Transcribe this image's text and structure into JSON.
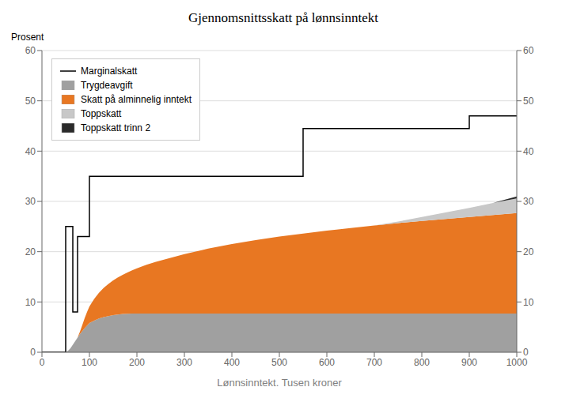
{
  "chart_data": {
    "type": "area",
    "title": "Gjennomsnittsskatt på lønnsinntekt",
    "x_label": "Lønnsinntekt. Tusen kroner",
    "y_label": "Prosent",
    "stacked": true,
    "grid": true,
    "legend": "upper left",
    "xlim": [
      0,
      1000
    ],
    "xticks": [
      0,
      100,
      200,
      300,
      400,
      500,
      600,
      700,
      800,
      900,
      1000
    ],
    "ylim": [
      0,
      60
    ],
    "yticks": [
      0,
      10,
      20,
      30,
      40,
      50,
      60
    ],
    "y2lim": [
      0,
      60
    ],
    "y2ticks": [
      0,
      10,
      20,
      30,
      40,
      50,
      60
    ],
    "x": [
      0,
      50,
      55,
      60,
      65,
      70,
      75,
      80,
      85,
      90,
      95,
      100,
      110,
      120,
      130,
      140,
      150,
      160,
      170,
      180,
      190,
      200,
      220,
      240,
      260,
      280,
      300,
      350,
      400,
      450,
      500,
      550,
      600,
      620,
      650,
      700,
      750,
      800,
      850,
      900,
      950,
      1000
    ],
    "series": [
      {
        "name": "Marginalskatt",
        "type": "line",
        "color": "#000000",
        "x": [
          0,
          50,
          50,
          65,
          65,
          75,
          75,
          100,
          100,
          550,
          550,
          900,
          900,
          1000
        ],
        "values": [
          0,
          0,
          25,
          25,
          8,
          8,
          23,
          23,
          35,
          35,
          44.5,
          44.5,
          47,
          47
        ]
      },
      {
        "name": "Trygdeavgift",
        "type": "area",
        "color": "#a0a0a0",
        "values": [
          0,
          0,
          0.3,
          0.8,
          1.5,
          2.2,
          2.9,
          3.6,
          4.2,
          4.8,
          5.3,
          5.8,
          6.3,
          6.7,
          7.0,
          7.2,
          7.4,
          7.5,
          7.6,
          7.65,
          7.68,
          7.7,
          7.7,
          7.7,
          7.7,
          7.7,
          7.7,
          7.7,
          7.7,
          7.7,
          7.7,
          7.7,
          7.7,
          7.7,
          7.7,
          7.7,
          7.7,
          7.7,
          7.7,
          7.7,
          7.7,
          7.7
        ]
      },
      {
        "name": "Skatt på alminnelig inntekt",
        "type": "area",
        "color": "#e87722",
        "values": [
          0,
          0,
          0,
          0,
          0,
          0,
          0,
          0.5,
          1.2,
          2.0,
          2.7,
          3.3,
          4.3,
          5.1,
          5.8,
          6.4,
          6.9,
          7.4,
          7.8,
          8.2,
          8.6,
          9.0,
          9.7,
          10.3,
          10.8,
          11.3,
          11.8,
          12.9,
          13.8,
          14.6,
          15.3,
          15.9,
          16.5,
          16.7,
          17.0,
          17.5,
          18.0,
          18.4,
          18.8,
          19.2,
          19.6,
          20.0
        ]
      },
      {
        "name": "Toppskatt",
        "type": "area",
        "color": "#c8c8c8",
        "values": [
          0,
          0,
          0,
          0,
          0,
          0,
          0,
          0,
          0,
          0,
          0,
          0,
          0,
          0,
          0,
          0,
          0,
          0,
          0,
          0,
          0,
          0,
          0,
          0,
          0,
          0,
          0,
          0,
          0,
          0,
          0,
          0,
          0,
          0,
          0,
          0,
          0.3,
          0.8,
          1.3,
          1.8,
          2.4,
          2.9
        ]
      },
      {
        "name": "Toppskatt trinn 2",
        "type": "area",
        "color": "#2a2a2a",
        "values": [
          0,
          0,
          0,
          0,
          0,
          0,
          0,
          0,
          0,
          0,
          0,
          0,
          0,
          0,
          0,
          0,
          0,
          0,
          0,
          0,
          0,
          0,
          0,
          0,
          0,
          0,
          0,
          0,
          0,
          0,
          0,
          0,
          0,
          0,
          0,
          0,
          0,
          0,
          0,
          0,
          0,
          0.4
        ]
      }
    ]
  }
}
